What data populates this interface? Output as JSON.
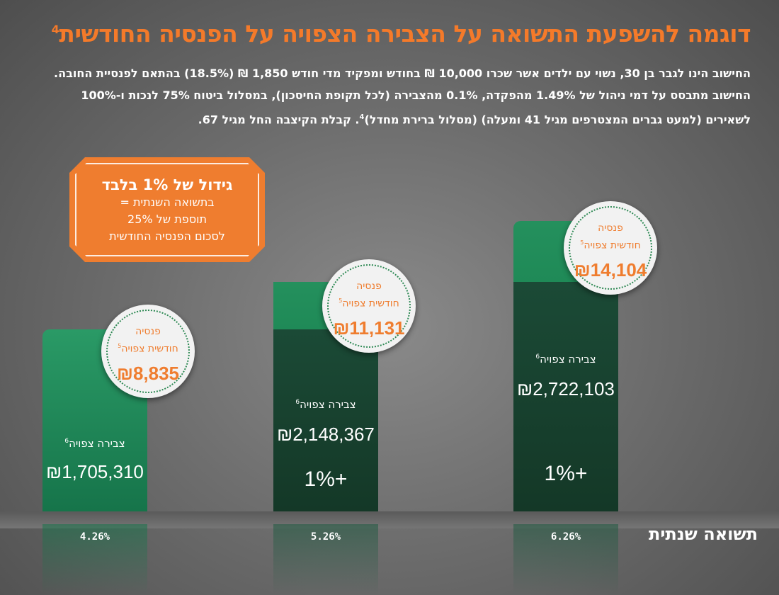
{
  "title": "דוגמה להשפעת התשואה על הצבירה הצפויה על הפנסיה החודשית",
  "title_footnote": "4",
  "description": {
    "line1": "החישוב הינו לגבר בן 30, נשוי עם ילדים אשר שכרו 10,000 ₪ בחודש ומפקיד מדי חודש 1,850 ₪ (18.5%) בהתאם לפנסיית החובה.",
    "line2": "החישוב מתבסס על דמי ניהול של 1.49% מהפקדה, 0.1% מהצבירה (לכל תקופת החיסכון), במסלול ביטוח 75% לנכות ו-100%",
    "line3a": "לשאירים (למעט גברים המצטרפים מגיל 41 ומעלה) (מסלול ברירת מחדל)",
    "line3_footnote": "4",
    "line3b": ". קבלת הקיצבה החל מגיל 67."
  },
  "badge": {
    "heading": "גידול של 1% בלבד",
    "line1": "בתשואה השנתית =",
    "line2": "תוספת של 25%",
    "line3": "לסכום הפנסיה החודשית"
  },
  "labels": {
    "accumulation": "צבירה צפויה",
    "accumulation_footnote": "6",
    "pension_l1": "פנסיה",
    "pension_l2": "חודשית צפויה",
    "pension_footnote": "5",
    "increment": "+1%"
  },
  "axis_title": "תשואה שנתית",
  "colors": {
    "bar_green": "#1f8a57",
    "bar_dark_green": "#1b4a36",
    "orange": "#ef7d2f"
  },
  "chart_data": {
    "type": "bar",
    "categories": [
      "4.26%",
      "5.26%",
      "6.26%"
    ],
    "xlabel": "תשואה שנתית",
    "series": [
      {
        "name": "צבירה צפויה",
        "values": [
          1705310,
          2148367,
          2722103
        ],
        "labels": [
          "₪1,705,310",
          "₪2,148,367",
          "₪2,722,103"
        ]
      },
      {
        "name": "פנסיה חודשית צפויה",
        "values": [
          8835,
          11131,
          14104
        ],
        "labels": [
          "₪8,835",
          "₪11,131",
          "₪14,104"
        ]
      }
    ],
    "increments": [
      "",
      "+1%",
      "+1%"
    ]
  }
}
